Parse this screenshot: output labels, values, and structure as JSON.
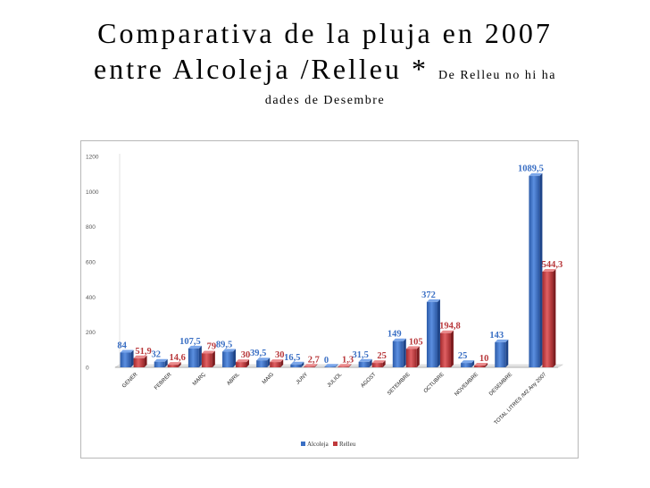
{
  "slide": {
    "title_line1": "Comparativa de la pluja  en 2007",
    "title_line2": "entre Alcoleja /Relleu *",
    "title_note_a": "De Relleu no hi ha",
    "title_note_b": "dades de Desembre"
  },
  "chart_data": {
    "type": "bar",
    "title": "",
    "xlabel": "",
    "ylabel": "",
    "ylim": [
      0,
      1200
    ],
    "yticks": [
      "0",
      "200",
      "400",
      "600",
      "800",
      "1000",
      "1200"
    ],
    "grid": false,
    "legend_position": "bottom",
    "categories": [
      "GENER",
      "FEBRER",
      "MARÇ",
      "ABRIL",
      "MAIG",
      "JUNY",
      "JULIOL",
      "AGOST",
      "SETEMBRE",
      "OCTUBRE",
      "NOVEMBRE",
      "DESEMBRE",
      "TOTAL LITRES /M2 Any 2007"
    ],
    "series": [
      {
        "name": "Alcoleja",
        "color": "#3a6fc4",
        "values": [
          84,
          32,
          107.5,
          89.5,
          39.5,
          16.5,
          0,
          31.5,
          149,
          372,
          25,
          143,
          1089.5
        ],
        "labels": [
          "84",
          "32",
          "107,5",
          "89,5",
          "39,5",
          "16,5",
          "0",
          "31,5",
          "149",
          "372",
          "25",
          "143",
          "1089,5"
        ]
      },
      {
        "name": "Relleu",
        "color": "#c0393c",
        "values": [
          51.9,
          14.6,
          79,
          30,
          30,
          2.7,
          1.3,
          25,
          105,
          194.8,
          10,
          null,
          544.3
        ],
        "labels": [
          "51,9",
          "14,6",
          "79",
          "30",
          "30",
          "2,7",
          "1,3",
          "25",
          "105",
          "194,8",
          "10",
          "",
          "544,3"
        ]
      }
    ]
  }
}
